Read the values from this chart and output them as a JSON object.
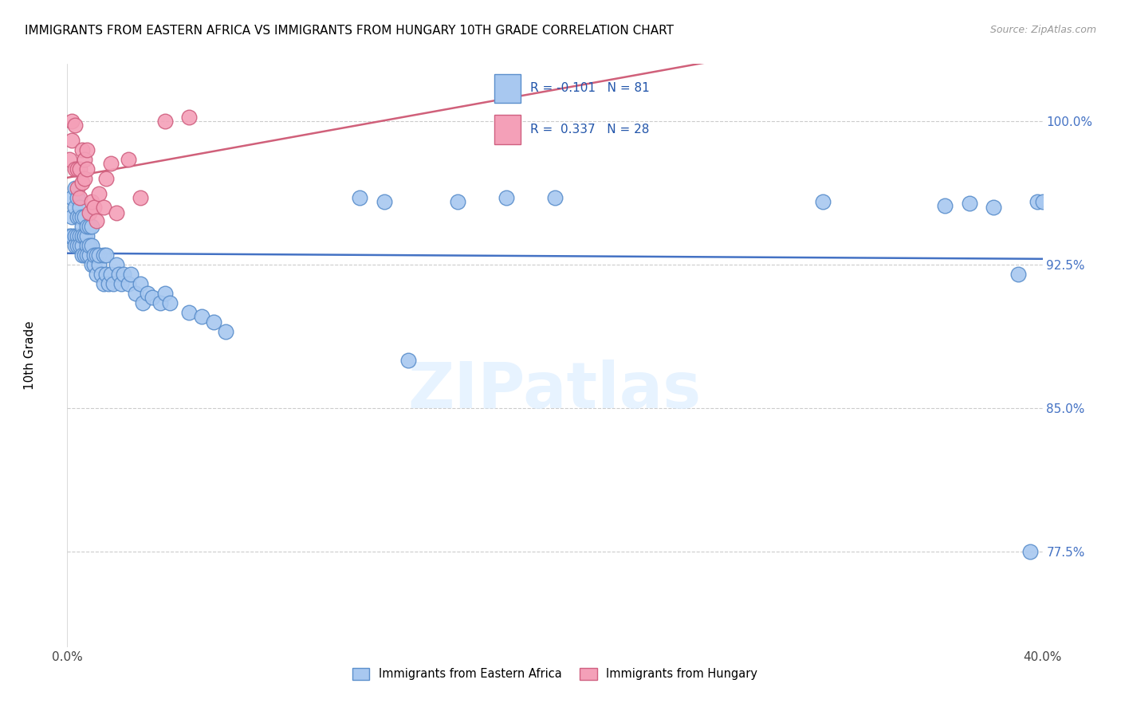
{
  "title": "IMMIGRANTS FROM EASTERN AFRICA VS IMMIGRANTS FROM HUNGARY 10TH GRADE CORRELATION CHART",
  "source": "Source: ZipAtlas.com",
  "ylabel": "10th Grade",
  "ytick_values": [
    1.0,
    0.925,
    0.85,
    0.775
  ],
  "ytick_labels": [
    "100.0%",
    "92.5%",
    "85.0%",
    "77.5%"
  ],
  "xlim": [
    0.0,
    0.4
  ],
  "ylim": [
    0.725,
    1.03
  ],
  "blue_color": "#A8C8F0",
  "pink_color": "#F4A0B8",
  "blue_edge_color": "#5B8FCC",
  "pink_edge_color": "#D06080",
  "blue_line_color": "#4472C4",
  "pink_line_color": "#D0607A",
  "watermark": "ZIPatlas",
  "blue_r": -0.101,
  "pink_r": 0.337,
  "blue_scatter_x": [
    0.001,
    0.002,
    0.002,
    0.002,
    0.003,
    0.003,
    0.003,
    0.003,
    0.004,
    0.004,
    0.004,
    0.004,
    0.005,
    0.005,
    0.005,
    0.005,
    0.006,
    0.006,
    0.006,
    0.006,
    0.006,
    0.007,
    0.007,
    0.007,
    0.007,
    0.008,
    0.008,
    0.008,
    0.008,
    0.009,
    0.009,
    0.009,
    0.01,
    0.01,
    0.01,
    0.011,
    0.011,
    0.012,
    0.012,
    0.013,
    0.013,
    0.014,
    0.015,
    0.015,
    0.016,
    0.016,
    0.017,
    0.018,
    0.019,
    0.02,
    0.021,
    0.022,
    0.023,
    0.025,
    0.026,
    0.028,
    0.03,
    0.031,
    0.033,
    0.035,
    0.038,
    0.04,
    0.042,
    0.05,
    0.055,
    0.06,
    0.065,
    0.12,
    0.13,
    0.16,
    0.18,
    0.2,
    0.31,
    0.36,
    0.37,
    0.38,
    0.39,
    0.395,
    0.398,
    0.4,
    0.14
  ],
  "blue_scatter_y": [
    0.94,
    0.96,
    0.95,
    0.94,
    0.965,
    0.955,
    0.94,
    0.935,
    0.96,
    0.95,
    0.94,
    0.935,
    0.95,
    0.94,
    0.935,
    0.955,
    0.945,
    0.935,
    0.94,
    0.95,
    0.93,
    0.94,
    0.93,
    0.94,
    0.95,
    0.935,
    0.94,
    0.93,
    0.945,
    0.93,
    0.935,
    0.945,
    0.925,
    0.935,
    0.945,
    0.925,
    0.93,
    0.92,
    0.93,
    0.925,
    0.93,
    0.92,
    0.915,
    0.93,
    0.92,
    0.93,
    0.915,
    0.92,
    0.915,
    0.925,
    0.92,
    0.915,
    0.92,
    0.915,
    0.92,
    0.91,
    0.915,
    0.905,
    0.91,
    0.908,
    0.905,
    0.91,
    0.905,
    0.9,
    0.898,
    0.895,
    0.89,
    0.96,
    0.958,
    0.958,
    0.96,
    0.96,
    0.958,
    0.956,
    0.957,
    0.955,
    0.92,
    0.775,
    0.958,
    0.958,
    0.875
  ],
  "pink_scatter_x": [
    0.001,
    0.002,
    0.002,
    0.003,
    0.003,
    0.004,
    0.004,
    0.005,
    0.005,
    0.006,
    0.006,
    0.007,
    0.007,
    0.008,
    0.008,
    0.009,
    0.01,
    0.011,
    0.012,
    0.013,
    0.015,
    0.016,
    0.018,
    0.02,
    0.025,
    0.03,
    0.04,
    0.05
  ],
  "pink_scatter_y": [
    0.98,
    0.99,
    1.0,
    0.975,
    0.998,
    0.965,
    0.975,
    0.96,
    0.975,
    0.968,
    0.985,
    0.97,
    0.98,
    0.975,
    0.985,
    0.952,
    0.958,
    0.955,
    0.948,
    0.962,
    0.955,
    0.97,
    0.978,
    0.952,
    0.98,
    0.96,
    1.0,
    1.002
  ]
}
